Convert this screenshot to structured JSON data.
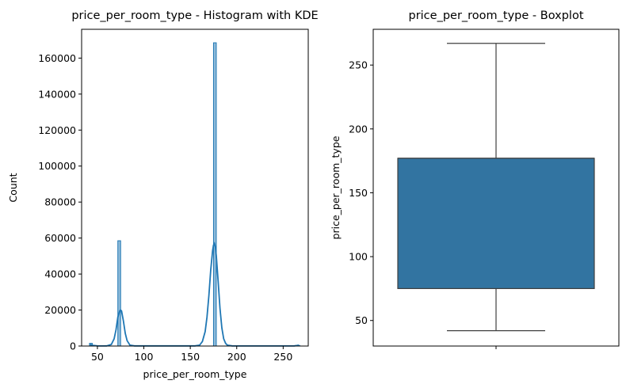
{
  "chart_data": [
    {
      "type": "histogram",
      "title": "price_per_room_type - Histogram with KDE",
      "xlabel": "price_per_room_type",
      "ylabel": "Count",
      "xlim": [
        33,
        277
      ],
      "ylim": [
        0,
        176000
      ],
      "xticks": [
        50,
        100,
        150,
        200,
        250
      ],
      "yticks": [
        0,
        20000,
        40000,
        60000,
        80000,
        100000,
        120000,
        140000,
        160000
      ],
      "bins": [
        {
          "x0": 41.5,
          "x1": 44.5,
          "count": 1500
        },
        {
          "x0": 72.0,
          "x1": 75.0,
          "count": 58500
        },
        {
          "x0": 175.0,
          "x1": 178.0,
          "count": 168500
        },
        {
          "x0": 265.0,
          "x1": 268.0,
          "count": 300
        }
      ],
      "bar_color": "#1f77b4",
      "kde": {
        "x": [
          42,
          45,
          50,
          55,
          60,
          65,
          68,
          70,
          72,
          74,
          75,
          76,
          78,
          80,
          82,
          85,
          90,
          100,
          120,
          140,
          155,
          160,
          163,
          166,
          168,
          170,
          172,
          174,
          175,
          176,
          177,
          178,
          180,
          182,
          184,
          186,
          188,
          190,
          195,
          200,
          220,
          250,
          262,
          265,
          267
        ],
        "y": [
          800,
          400,
          100,
          50,
          100,
          900,
          4000,
          9000,
          16000,
          19500,
          20000,
          19500,
          14000,
          7000,
          3000,
          500,
          100,
          100,
          100,
          100,
          100,
          500,
          2500,
          8000,
          16000,
          28000,
          42000,
          53000,
          56000,
          57000,
          55000,
          50000,
          36000,
          21000,
          10000,
          4000,
          1500,
          500,
          100,
          50,
          50,
          50,
          100,
          300,
          500
        ]
      },
      "line_color": "#1f77b4"
    },
    {
      "type": "box",
      "title": "price_per_room_type - Boxplot",
      "xlabel": "",
      "ylabel": "price_per_room_type",
      "ylim": [
        30,
        278
      ],
      "yticks": [
        50,
        100,
        150,
        200,
        250
      ],
      "box": {
        "whisker_low": 42,
        "q1": 75,
        "median": 177,
        "q3": 177,
        "whisker_high": 267
      },
      "box_color": "#3274a1",
      "line_color": "#3f3f3f"
    }
  ]
}
